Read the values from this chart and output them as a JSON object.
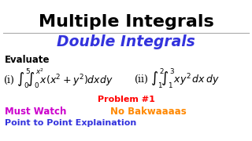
{
  "bg_color": "#ffffff",
  "title": "Multiple Integrals",
  "subtitle": "Double Integrals",
  "title_color": "#000000",
  "subtitle_color": "#3333dd",
  "evaluate_label": "Evaluate",
  "problem_label": "Problem #1",
  "problem_color": "#ff0000",
  "must_watch": "Must Watch",
  "must_watch_color": "#cc00cc",
  "no_bak": "No Bakwaaaas",
  "no_bak_color": "#ff8800",
  "point_label": "Point to Point Explaination",
  "point_color": "#3333dd",
  "line_color": "#aaaaaa"
}
